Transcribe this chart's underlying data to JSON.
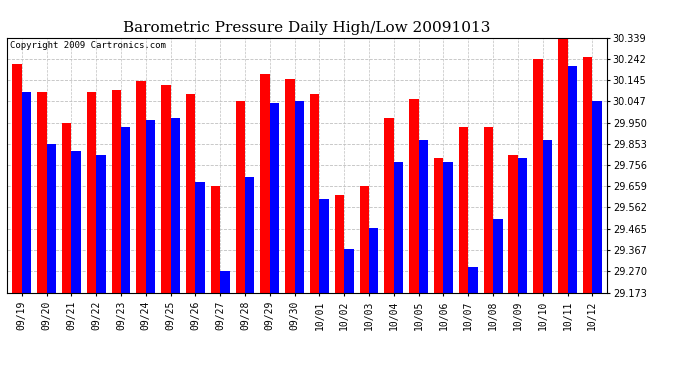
{
  "title": "Barometric Pressure Daily High/Low 20091013",
  "copyright": "Copyright 2009 Cartronics.com",
  "dates": [
    "09/19",
    "09/20",
    "09/21",
    "09/22",
    "09/23",
    "09/24",
    "09/25",
    "09/26",
    "09/27",
    "09/28",
    "09/29",
    "09/30",
    "10/01",
    "10/02",
    "10/03",
    "10/04",
    "10/05",
    "10/06",
    "10/07",
    "10/08",
    "10/09",
    "10/10",
    "10/11",
    "10/12"
  ],
  "highs": [
    30.22,
    30.09,
    29.95,
    30.09,
    30.1,
    30.14,
    30.12,
    30.08,
    29.66,
    30.05,
    30.17,
    30.15,
    30.08,
    29.62,
    29.66,
    29.97,
    30.06,
    29.79,
    29.93,
    29.93,
    29.8,
    30.24,
    30.34,
    30.25
  ],
  "lows": [
    30.09,
    29.85,
    29.82,
    29.8,
    29.93,
    29.96,
    29.97,
    29.68,
    29.27,
    29.7,
    30.04,
    30.05,
    29.6,
    29.37,
    29.47,
    29.77,
    29.87,
    29.77,
    29.29,
    29.51,
    29.79,
    29.87,
    30.21,
    30.05
  ],
  "ymin": 29.173,
  "ymax": 30.339,
  "yticks": [
    29.173,
    29.27,
    29.367,
    29.465,
    29.562,
    29.659,
    29.756,
    29.853,
    29.95,
    30.047,
    30.145,
    30.242,
    30.339
  ],
  "high_color": "#ff0000",
  "low_color": "#0000ff",
  "bg_color": "#ffffff",
  "grid_color": "#c0c0c0",
  "title_fontsize": 11,
  "tick_fontsize": 7,
  "copyright_fontsize": 6.5
}
